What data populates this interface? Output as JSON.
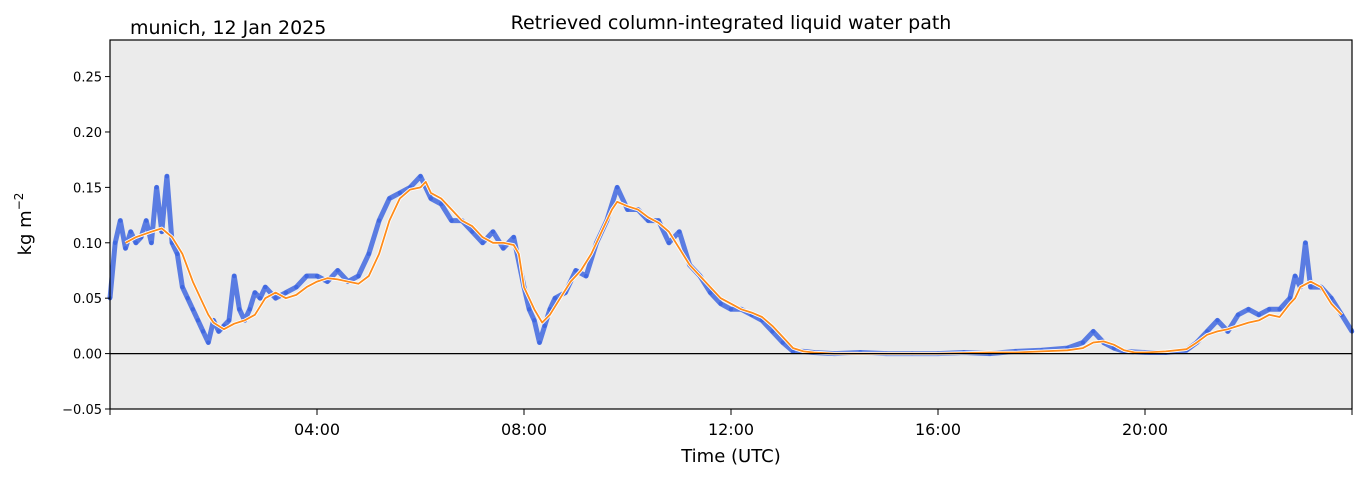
{
  "chart_data": {
    "type": "line",
    "title": "Retrieved column-integrated liquid water path",
    "subtitle": "munich, 12 Jan 2025",
    "xlabel": "Time (UTC)",
    "ylabel": "kg m",
    "ylabel_superscript": "−2",
    "xlim": [
      0,
      24
    ],
    "ylim": [
      -0.05,
      0.283
    ],
    "x_unit": "hours UTC",
    "x_ticks": [
      {
        "value": 4,
        "label": "04:00"
      },
      {
        "value": 8,
        "label": "08:00"
      },
      {
        "value": 12,
        "label": "12:00"
      },
      {
        "value": 16,
        "label": "16:00"
      },
      {
        "value": 20,
        "label": "20:00"
      }
    ],
    "y_ticks": [
      {
        "value": -0.05,
        "label": "−0.05"
      },
      {
        "value": 0.0,
        "label": "0.00"
      },
      {
        "value": 0.05,
        "label": "0.05"
      },
      {
        "value": 0.1,
        "label": "0.10"
      },
      {
        "value": 0.15,
        "label": "0.15"
      },
      {
        "value": 0.2,
        "label": "0.20"
      },
      {
        "value": 0.25,
        "label": "0.25"
      }
    ],
    "zero_line": true,
    "grid": false,
    "legend": "none",
    "background_color": "#ebebeb",
    "series": [
      {
        "style": "scatter",
        "color": "#4169e1",
        "x": [
          0.0,
          0.1,
          0.2,
          0.3,
          0.4,
          0.5,
          0.6,
          0.7,
          0.8,
          0.9,
          1.0,
          1.1,
          1.2,
          1.3,
          1.4,
          1.5,
          1.6,
          1.7,
          1.8,
          1.9,
          2.0,
          2.1,
          2.2,
          2.3,
          2.4,
          2.5,
          2.6,
          2.7,
          2.8,
          2.9,
          3.0,
          3.2,
          3.4,
          3.6,
          3.8,
          4.0,
          4.2,
          4.4,
          4.6,
          4.8,
          5.0,
          5.2,
          5.4,
          5.6,
          5.8,
          6.0,
          6.2,
          6.4,
          6.6,
          6.8,
          7.0,
          7.2,
          7.4,
          7.6,
          7.8,
          8.0,
          8.1,
          8.2,
          8.3,
          8.4,
          8.5,
          8.6,
          8.8,
          9.0,
          9.2,
          9.4,
          9.6,
          9.8,
          10.0,
          10.2,
          10.4,
          10.6,
          10.8,
          11.0,
          11.2,
          11.4,
          11.6,
          11.8,
          12.0,
          12.2,
          12.4,
          12.6,
          12.8,
          13.0,
          13.2,
          13.4,
          13.6,
          14.0,
          14.5,
          15.0,
          15.5,
          16.0,
          16.5,
          17.0,
          17.5,
          18.0,
          18.5,
          18.8,
          19.0,
          19.2,
          19.4,
          19.6,
          20.0,
          20.4,
          20.8,
          21.0,
          21.2,
          21.4,
          21.6,
          21.8,
          22.0,
          22.2,
          22.4,
          22.6,
          22.8,
          22.9,
          23.0,
          23.1,
          23.2,
          23.4,
          23.6,
          23.8,
          24.0
        ],
        "values": [
          0.05,
          0.1,
          0.12,
          0.095,
          0.11,
          0.1,
          0.105,
          0.12,
          0.1,
          0.15,
          0.11,
          0.16,
          0.1,
          0.09,
          0.06,
          0.05,
          0.04,
          0.03,
          0.02,
          0.01,
          0.03,
          0.02,
          0.025,
          0.03,
          0.07,
          0.04,
          0.03,
          0.04,
          0.055,
          0.05,
          0.06,
          0.05,
          0.055,
          0.06,
          0.07,
          0.07,
          0.065,
          0.075,
          0.065,
          0.07,
          0.09,
          0.12,
          0.14,
          0.145,
          0.15,
          0.16,
          0.14,
          0.135,
          0.12,
          0.12,
          0.11,
          0.1,
          0.11,
          0.095,
          0.105,
          0.06,
          0.04,
          0.03,
          0.01,
          0.025,
          0.04,
          0.05,
          0.055,
          0.075,
          0.07,
          0.1,
          0.12,
          0.15,
          0.13,
          0.13,
          0.12,
          0.12,
          0.1,
          0.11,
          0.08,
          0.07,
          0.055,
          0.045,
          0.04,
          0.04,
          0.035,
          0.03,
          0.02,
          0.01,
          0.002,
          0.002,
          0.001,
          0.0,
          0.001,
          0.0,
          0.0,
          0.0,
          0.001,
          0.0,
          0.002,
          0.003,
          0.005,
          0.01,
          0.02,
          0.01,
          0.005,
          0.002,
          0.001,
          0.001,
          0.003,
          0.01,
          0.02,
          0.03,
          0.02,
          0.035,
          0.04,
          0.035,
          0.04,
          0.04,
          0.05,
          0.07,
          0.06,
          0.1,
          0.06,
          0.06,
          0.05,
          0.035,
          0.02
        ]
      },
      {
        "style": "line",
        "color": "#ff8c1a",
        "x": [
          0.3,
          0.5,
          0.8,
          1.0,
          1.2,
          1.4,
          1.6,
          1.8,
          1.9,
          2.0,
          2.2,
          2.4,
          2.6,
          2.8,
          3.0,
          3.2,
          3.4,
          3.6,
          3.8,
          4.0,
          4.2,
          4.4,
          4.6,
          4.8,
          5.0,
          5.2,
          5.4,
          5.6,
          5.8,
          6.0,
          6.1,
          6.2,
          6.4,
          6.6,
          6.8,
          7.0,
          7.2,
          7.4,
          7.6,
          7.8,
          7.9,
          8.0,
          8.2,
          8.35,
          8.5,
          8.7,
          8.9,
          9.1,
          9.3,
          9.5,
          9.7,
          9.8,
          10.0,
          10.2,
          10.4,
          10.6,
          10.8,
          11.0,
          11.2,
          11.4,
          11.6,
          11.8,
          12.0,
          12.2,
          12.4,
          12.6,
          12.8,
          13.0,
          13.2,
          13.4,
          13.6,
          14.0,
          15.0,
          16.0,
          17.0,
          17.5,
          18.0,
          18.5,
          18.8,
          19.0,
          19.2,
          19.4,
          19.6,
          19.8,
          20.0,
          20.4,
          20.8,
          21.0,
          21.2,
          21.4,
          21.6,
          21.8,
          22.0,
          22.2,
          22.4,
          22.6,
          22.8,
          22.9,
          23.0,
          23.2,
          23.4,
          23.6,
          23.8
        ],
        "values": [
          0.1,
          0.105,
          0.11,
          0.113,
          0.105,
          0.09,
          0.065,
          0.045,
          0.035,
          0.028,
          0.022,
          0.027,
          0.03,
          0.035,
          0.05,
          0.055,
          0.05,
          0.053,
          0.06,
          0.065,
          0.068,
          0.067,
          0.065,
          0.063,
          0.07,
          0.09,
          0.12,
          0.14,
          0.148,
          0.15,
          0.155,
          0.145,
          0.14,
          0.13,
          0.12,
          0.115,
          0.105,
          0.1,
          0.1,
          0.098,
          0.09,
          0.06,
          0.04,
          0.028,
          0.035,
          0.05,
          0.065,
          0.075,
          0.09,
          0.11,
          0.13,
          0.137,
          0.133,
          0.13,
          0.123,
          0.118,
          0.11,
          0.095,
          0.08,
          0.07,
          0.06,
          0.05,
          0.045,
          0.04,
          0.037,
          0.033,
          0.025,
          0.015,
          0.005,
          0.002,
          0.001,
          0.0,
          0.0,
          0.0,
          0.001,
          0.001,
          0.002,
          0.003,
          0.005,
          0.01,
          0.011,
          0.008,
          0.003,
          0.001,
          0.001,
          0.002,
          0.004,
          0.01,
          0.017,
          0.02,
          0.022,
          0.025,
          0.028,
          0.03,
          0.035,
          0.033,
          0.045,
          0.05,
          0.06,
          0.065,
          0.06,
          0.045,
          0.035
        ]
      }
    ]
  }
}
